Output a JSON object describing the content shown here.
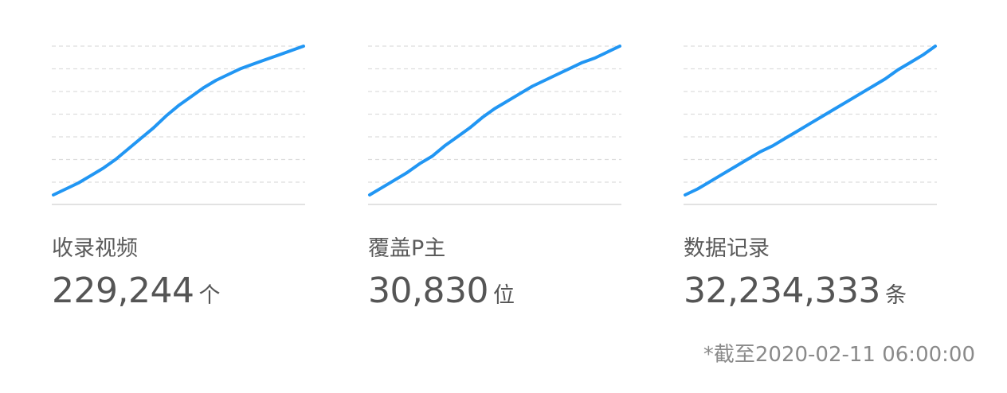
{
  "line_color": "#2196f3",
  "cards": [
    {
      "label": "收录视频",
      "value": "229,244",
      "unit": "个"
    },
    {
      "label": "覆盖P主",
      "value": "30,830",
      "unit": "位"
    },
    {
      "label": "数据记录",
      "value": "32,234,333",
      "unit": "条"
    }
  ],
  "footnote": "*截至2020-02-11 06:00:00",
  "chart_data": [
    {
      "type": "line",
      "xlabel": "",
      "ylabel": "",
      "x": [
        0,
        1,
        2,
        3,
        4,
        5,
        6,
        7,
        8,
        9,
        10,
        11,
        12,
        13,
        14,
        15,
        16,
        17,
        18,
        19,
        20
      ],
      "values": [
        0.0,
        0.04,
        0.08,
        0.13,
        0.18,
        0.24,
        0.31,
        0.38,
        0.45,
        0.53,
        0.6,
        0.66,
        0.72,
        0.77,
        0.81,
        0.85,
        0.88,
        0.91,
        0.94,
        0.97,
        1.0
      ],
      "grid": true
    },
    {
      "type": "line",
      "xlabel": "",
      "ylabel": "",
      "x": [
        0,
        1,
        2,
        3,
        4,
        5,
        6,
        7,
        8,
        9,
        10,
        11,
        12,
        13,
        14,
        15,
        16,
        17,
        18,
        19,
        20
      ],
      "values": [
        0.0,
        0.05,
        0.1,
        0.15,
        0.21,
        0.26,
        0.33,
        0.39,
        0.45,
        0.52,
        0.58,
        0.63,
        0.68,
        0.73,
        0.77,
        0.81,
        0.85,
        0.89,
        0.92,
        0.96,
        1.0
      ],
      "grid": true
    },
    {
      "type": "line",
      "xlabel": "",
      "ylabel": "",
      "x": [
        0,
        1,
        2,
        3,
        4,
        5,
        6,
        7,
        8,
        9,
        10,
        11,
        12,
        13,
        14,
        15,
        16,
        17,
        18,
        19,
        20
      ],
      "values": [
        0.0,
        0.04,
        0.09,
        0.14,
        0.19,
        0.24,
        0.29,
        0.33,
        0.38,
        0.43,
        0.48,
        0.53,
        0.58,
        0.63,
        0.68,
        0.73,
        0.78,
        0.84,
        0.89,
        0.94,
        1.0
      ],
      "grid": true
    }
  ]
}
